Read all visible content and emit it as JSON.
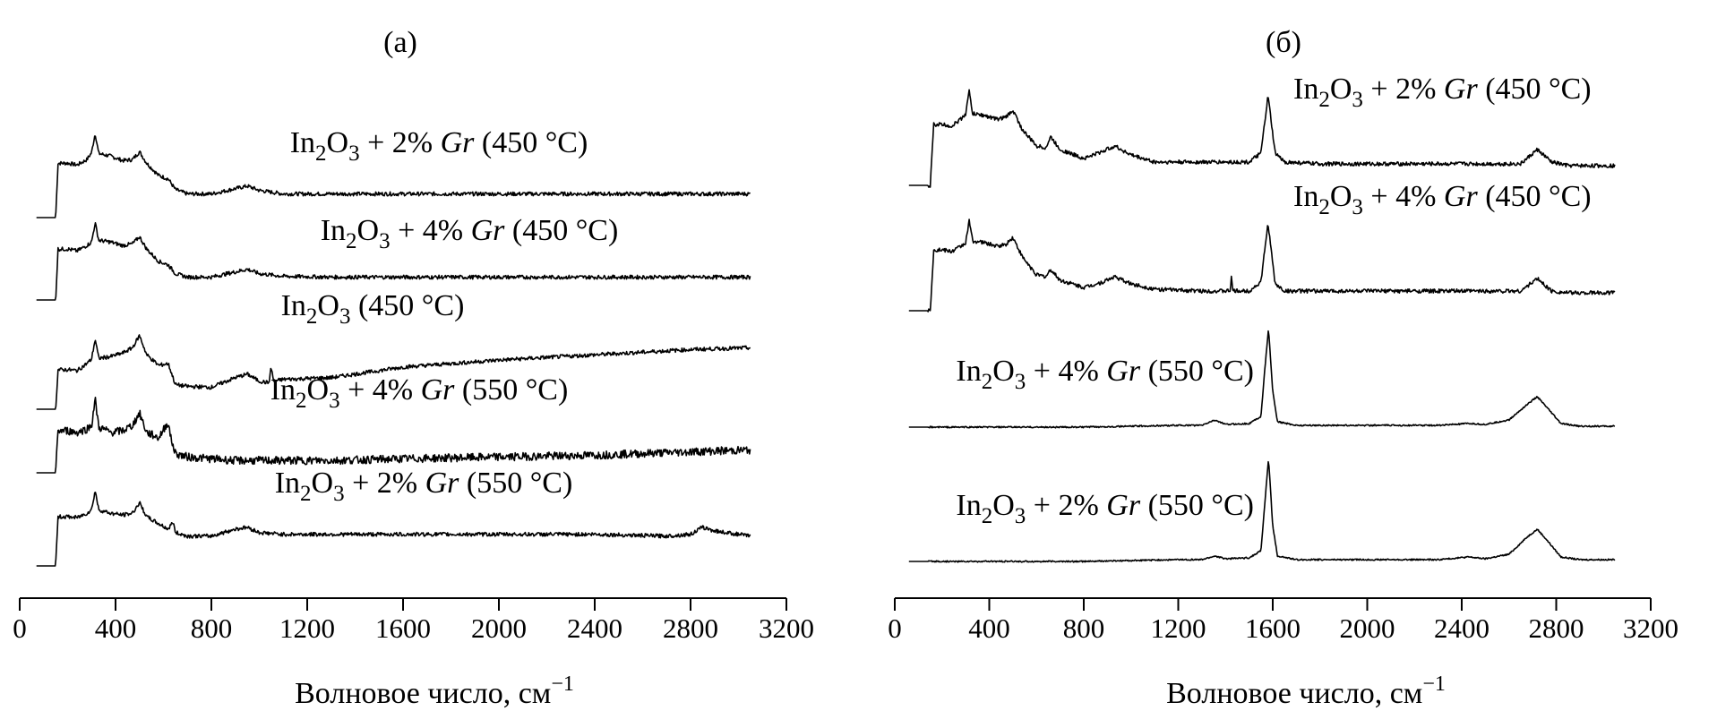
{
  "chart_data": [
    {
      "type": "line",
      "panel_label": "(а)",
      "xlabel": "Волновое число, см",
      "xlabel_sup": "−1",
      "xlim": [
        0,
        3200
      ],
      "xticks": [
        0,
        400,
        800,
        1200,
        1600,
        2000,
        2400,
        2800,
        3200
      ],
      "y_axis": "none (stacked spectra, arbitrary offset)",
      "series": [
        {
          "name": "In2O3 + 2% Gr (450 °C)",
          "label": {
            "pre": "In",
            "s1": "2",
            "mid": "O",
            "s2": "3",
            "tail": " + 2% ",
            "it": "Gr",
            "post": " (450 °C)"
          },
          "x": [
            70,
            130,
            150,
            160,
            200,
            240,
            280,
            300,
            315,
            330,
            380,
            430,
            470,
            500,
            530,
            580,
            620,
            650,
            700,
            800,
            900,
            950,
            1000,
            1100,
            1300,
            1600,
            2000,
            2400,
            2800,
            3050
          ],
          "y": [
            0,
            0,
            0,
            62,
            62,
            60,
            66,
            74,
            96,
            73,
            70,
            65,
            66,
            75,
            62,
            48,
            44,
            32,
            27,
            27,
            33,
            36,
            31,
            27,
            27,
            27,
            27,
            27,
            27,
            27
          ]
        },
        {
          "name": "In2O3 + 4% Gr (450 °C)",
          "label": {
            "pre": "In",
            "s1": "2",
            "mid": "O",
            "s2": "3",
            "tail": " + 4% ",
            "it": "Gr",
            "post": " (450 °C)"
          },
          "x": [
            70,
            130,
            150,
            160,
            200,
            240,
            280,
            300,
            315,
            330,
            380,
            430,
            470,
            500,
            530,
            580,
            620,
            650,
            700,
            800,
            900,
            950,
            1000,
            1100,
            1300,
            1600,
            2000,
            2400,
            2800,
            3050
          ],
          "y": [
            0,
            0,
            0,
            58,
            58,
            56,
            62,
            66,
            88,
            68,
            66,
            62,
            64,
            72,
            58,
            44,
            40,
            30,
            26,
            26,
            32,
            35,
            30,
            27,
            26,
            26,
            26,
            26,
            26,
            26
          ]
        },
        {
          "name": "In2O3 (450 °C)",
          "label": {
            "pre": "In",
            "s1": "2",
            "mid": "O",
            "s2": "3",
            "tail": " (450 °C)",
            "it": "",
            "post": ""
          },
          "x": [
            70,
            130,
            150,
            160,
            200,
            240,
            280,
            300,
            315,
            330,
            380,
            430,
            470,
            500,
            530,
            580,
            620,
            650,
            700,
            800,
            900,
            950,
            1000,
            1040,
            1050,
            1060,
            1100,
            1300,
            1600,
            2000,
            2400,
            2800,
            3050
          ],
          "y": [
            0,
            0,
            0,
            45,
            45,
            44,
            52,
            57,
            80,
            58,
            60,
            64,
            70,
            84,
            62,
            50,
            52,
            28,
            26,
            25,
            36,
            40,
            32,
            30,
            48,
            32,
            34,
            36,
            48,
            56,
            62,
            68,
            70
          ]
        },
        {
          "name": "In2O3 + 4% Gr (550 °C)",
          "label": {
            "pre": "In",
            "s1": "2",
            "mid": "O",
            "s2": "3",
            "tail": " + 4% ",
            "it": "Gr",
            "post": " (550 °C)"
          },
          "x": [
            70,
            130,
            150,
            160,
            200,
            240,
            280,
            300,
            315,
            330,
            380,
            430,
            470,
            500,
            530,
            580,
            620,
            630,
            650,
            700,
            800,
            900,
            1000,
            1100,
            1300,
            1600,
            2000,
            2400,
            2800,
            3050
          ],
          "y": [
            0,
            0,
            0,
            48,
            48,
            46,
            50,
            54,
            84,
            52,
            46,
            48,
            54,
            68,
            46,
            40,
            58,
            40,
            22,
            18,
            16,
            14,
            14,
            14,
            14,
            16,
            18,
            20,
            24,
            26
          ]
        },
        {
          "name": "In2O3 + 2% Gr (550 °C)",
          "label": {
            "pre": "In",
            "s1": "2",
            "mid": "O",
            "s2": "3",
            "tail": " + 2% ",
            "it": "Gr",
            "post": " (550 °C)"
          },
          "x": [
            70,
            130,
            150,
            160,
            200,
            240,
            280,
            300,
            315,
            330,
            380,
            430,
            470,
            500,
            530,
            580,
            620,
            640,
            650,
            700,
            800,
            900,
            950,
            1000,
            1100,
            1300,
            1600,
            2000,
            2400,
            2700,
            2800,
            2850,
            2900,
            3050
          ],
          "y": [
            0,
            0,
            0,
            56,
            56,
            55,
            60,
            64,
            86,
            64,
            60,
            58,
            60,
            72,
            56,
            48,
            42,
            50,
            38,
            34,
            34,
            42,
            44,
            38,
            36,
            36,
            36,
            36,
            36,
            34,
            36,
            44,
            40,
            34
          ]
        }
      ]
    },
    {
      "type": "line",
      "panel_label": "(б)",
      "xlabel": "Волновое число, см",
      "xlabel_sup": "−1",
      "xlim": [
        0,
        3200
      ],
      "xticks": [
        0,
        400,
        800,
        1200,
        1600,
        2000,
        2400,
        2800,
        3200
      ],
      "y_axis": "none (stacked spectra, arbitrary offset)",
      "series": [
        {
          "name": "In2O3 + 2% Gr (450 °C)",
          "label": {
            "pre": "In",
            "s1": "2",
            "mid": "O",
            "s2": "3",
            "tail": " + 2% ",
            "it": "Gr",
            "post": " (450 °C)"
          },
          "x": [
            60,
            130,
            150,
            165,
            200,
            240,
            280,
            300,
            315,
            330,
            380,
            430,
            470,
            500,
            540,
            600,
            640,
            660,
            700,
            800,
            880,
            930,
            1000,
            1100,
            1300,
            1500,
            1550,
            1580,
            1610,
            1650,
            1800,
            2000,
            2300,
            2500,
            2650,
            2720,
            2780,
            2850,
            3050
          ],
          "y": [
            0,
            0,
            0,
            68,
            68,
            66,
            74,
            80,
            105,
            80,
            78,
            74,
            76,
            84,
            62,
            44,
            42,
            54,
            40,
            30,
            38,
            44,
            34,
            26,
            26,
            26,
            36,
            100,
            36,
            26,
            24,
            24,
            24,
            24,
            24,
            40,
            26,
            22,
            22
          ]
        },
        {
          "name": "In2O3 + 4% Gr (450 °C)",
          "label": {
            "pre": "In",
            "s1": "2",
            "mid": "O",
            "s2": "3",
            "tail": " + 4% ",
            "it": "Gr",
            "post": " (450 °C)"
          },
          "x": [
            60,
            130,
            150,
            165,
            200,
            240,
            280,
            300,
            315,
            330,
            380,
            430,
            470,
            500,
            540,
            600,
            640,
            660,
            700,
            800,
            880,
            930,
            1000,
            1100,
            1300,
            1420,
            1425,
            1430,
            1500,
            1550,
            1580,
            1610,
            1650,
            1800,
            2000,
            2300,
            2500,
            2650,
            2720,
            2780,
            2850,
            3050
          ],
          "y": [
            0,
            0,
            0,
            68,
            68,
            66,
            72,
            76,
            100,
            78,
            76,
            72,
            74,
            82,
            60,
            40,
            38,
            46,
            34,
            26,
            32,
            38,
            30,
            24,
            22,
            22,
            40,
            22,
            22,
            32,
            98,
            30,
            22,
            22,
            22,
            22,
            22,
            22,
            36,
            22,
            20,
            20
          ]
        },
        {
          "name": "In2O3 + 4% Gr (550 °C)",
          "label": {
            "pre": "In",
            "s1": "2",
            "mid": "O",
            "s2": "3",
            "tail": " + 4% ",
            "it": "Gr",
            "post": " (550 °C)"
          },
          "x": [
            60,
            400,
            800,
            1200,
            1300,
            1355,
            1400,
            1500,
            1550,
            1565,
            1582,
            1600,
            1620,
            1700,
            2000,
            2300,
            2430,
            2500,
            2600,
            2680,
            2720,
            2760,
            2820,
            2900,
            3050
          ],
          "y": [
            0,
            0,
            0,
            2,
            2,
            8,
            3,
            4,
            12,
            60,
            110,
            40,
            6,
            2,
            2,
            2,
            4,
            3,
            8,
            26,
            34,
            22,
            4,
            1,
            1
          ]
        },
        {
          "name": "In2O3 + 2% Gr (550 °C)",
          "label": {
            "pre": "In",
            "s1": "2",
            "mid": "O",
            "s2": "3",
            "tail": " + 2% ",
            "it": "Gr",
            "post": " (550 °C)"
          },
          "x": [
            60,
            400,
            800,
            1200,
            1300,
            1355,
            1400,
            1500,
            1550,
            1565,
            1582,
            1600,
            1620,
            1700,
            2000,
            2300,
            2430,
            2500,
            2600,
            2680,
            2720,
            2760,
            2820,
            2900,
            3050
          ],
          "y": [
            0,
            0,
            0,
            2,
            2,
            6,
            3,
            4,
            12,
            60,
            115,
            40,
            6,
            2,
            2,
            2,
            5,
            3,
            8,
            28,
            36,
            24,
            5,
            2,
            2
          ]
        }
      ]
    }
  ]
}
